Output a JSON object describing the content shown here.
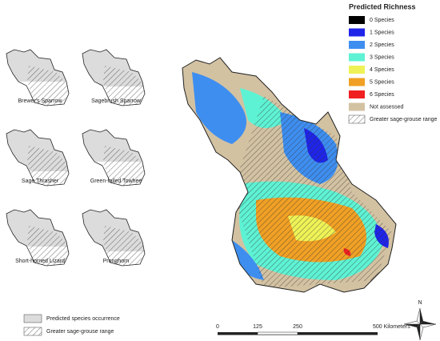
{
  "legend": {
    "title": "Predicted Richness",
    "items": [
      {
        "label": "0 Species",
        "color": "#000000"
      },
      {
        "label": "1 Species",
        "color": "#1f24e8"
      },
      {
        "label": "2 Species",
        "color": "#3e8ef0"
      },
      {
        "label": "3 Species",
        "color": "#5ef2d4"
      },
      {
        "label": "4 Species",
        "color": "#eef256"
      },
      {
        "label": "5 Species",
        "color": "#f0a024"
      },
      {
        "label": "6 Species",
        "color": "#f02020"
      },
      {
        "label": "Not assessed",
        "color": "#d3c2a2"
      },
      {
        "label": "Greater sage-grouse range",
        "pattern": "hatch"
      }
    ]
  },
  "species_panels": [
    "Brewer's Sparrow",
    "Sagebrush Sparrow",
    "Sage Thrasher",
    "Green-tailed Towhee",
    "Short-horned Lizard",
    "Pronghorn"
  ],
  "panel_legend": [
    "Predicted species occurrence",
    "Greater sage-grouse range"
  ],
  "scale_bar": {
    "labels": [
      "0",
      "125",
      "250",
      "500 Kilometers"
    ]
  },
  "north": "N"
}
